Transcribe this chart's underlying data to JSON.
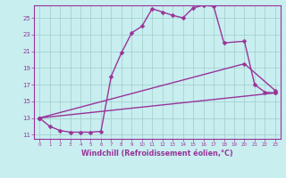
{
  "background_color": "#c8eef0",
  "grid_color": "#a0ccc8",
  "line_color": "#993399",
  "marker": "D",
  "marker_size": 2.5,
  "line_width": 1.0,
  "xlabel": "Windchill (Refroidissement éolien,°C)",
  "xlabel_fontsize": 5.8,
  "ylabel_ticks": [
    11,
    13,
    15,
    17,
    19,
    21,
    23,
    25
  ],
  "xlim": [
    -0.5,
    23.5
  ],
  "ylim": [
    10.5,
    26.5
  ],
  "series": [
    {
      "x": [
        0,
        1,
        2,
        3,
        4,
        5,
        6,
        7,
        8,
        9,
        10,
        11,
        12,
        13,
        14,
        15,
        16,
        17,
        18,
        20,
        21,
        22,
        23
      ],
      "y": [
        13.0,
        12.0,
        11.5,
        11.3,
        11.3,
        11.3,
        11.4,
        18.0,
        20.8,
        23.2,
        24.0,
        26.1,
        25.7,
        25.3,
        25.0,
        26.2,
        26.5,
        26.4,
        22.0,
        22.2,
        17.0,
        16.1,
        16.0
      ]
    },
    {
      "x": [
        0,
        23
      ],
      "y": [
        13.0,
        16.0
      ]
    },
    {
      "x": [
        0,
        20,
        23
      ],
      "y": [
        13.0,
        19.5,
        16.3
      ]
    }
  ]
}
